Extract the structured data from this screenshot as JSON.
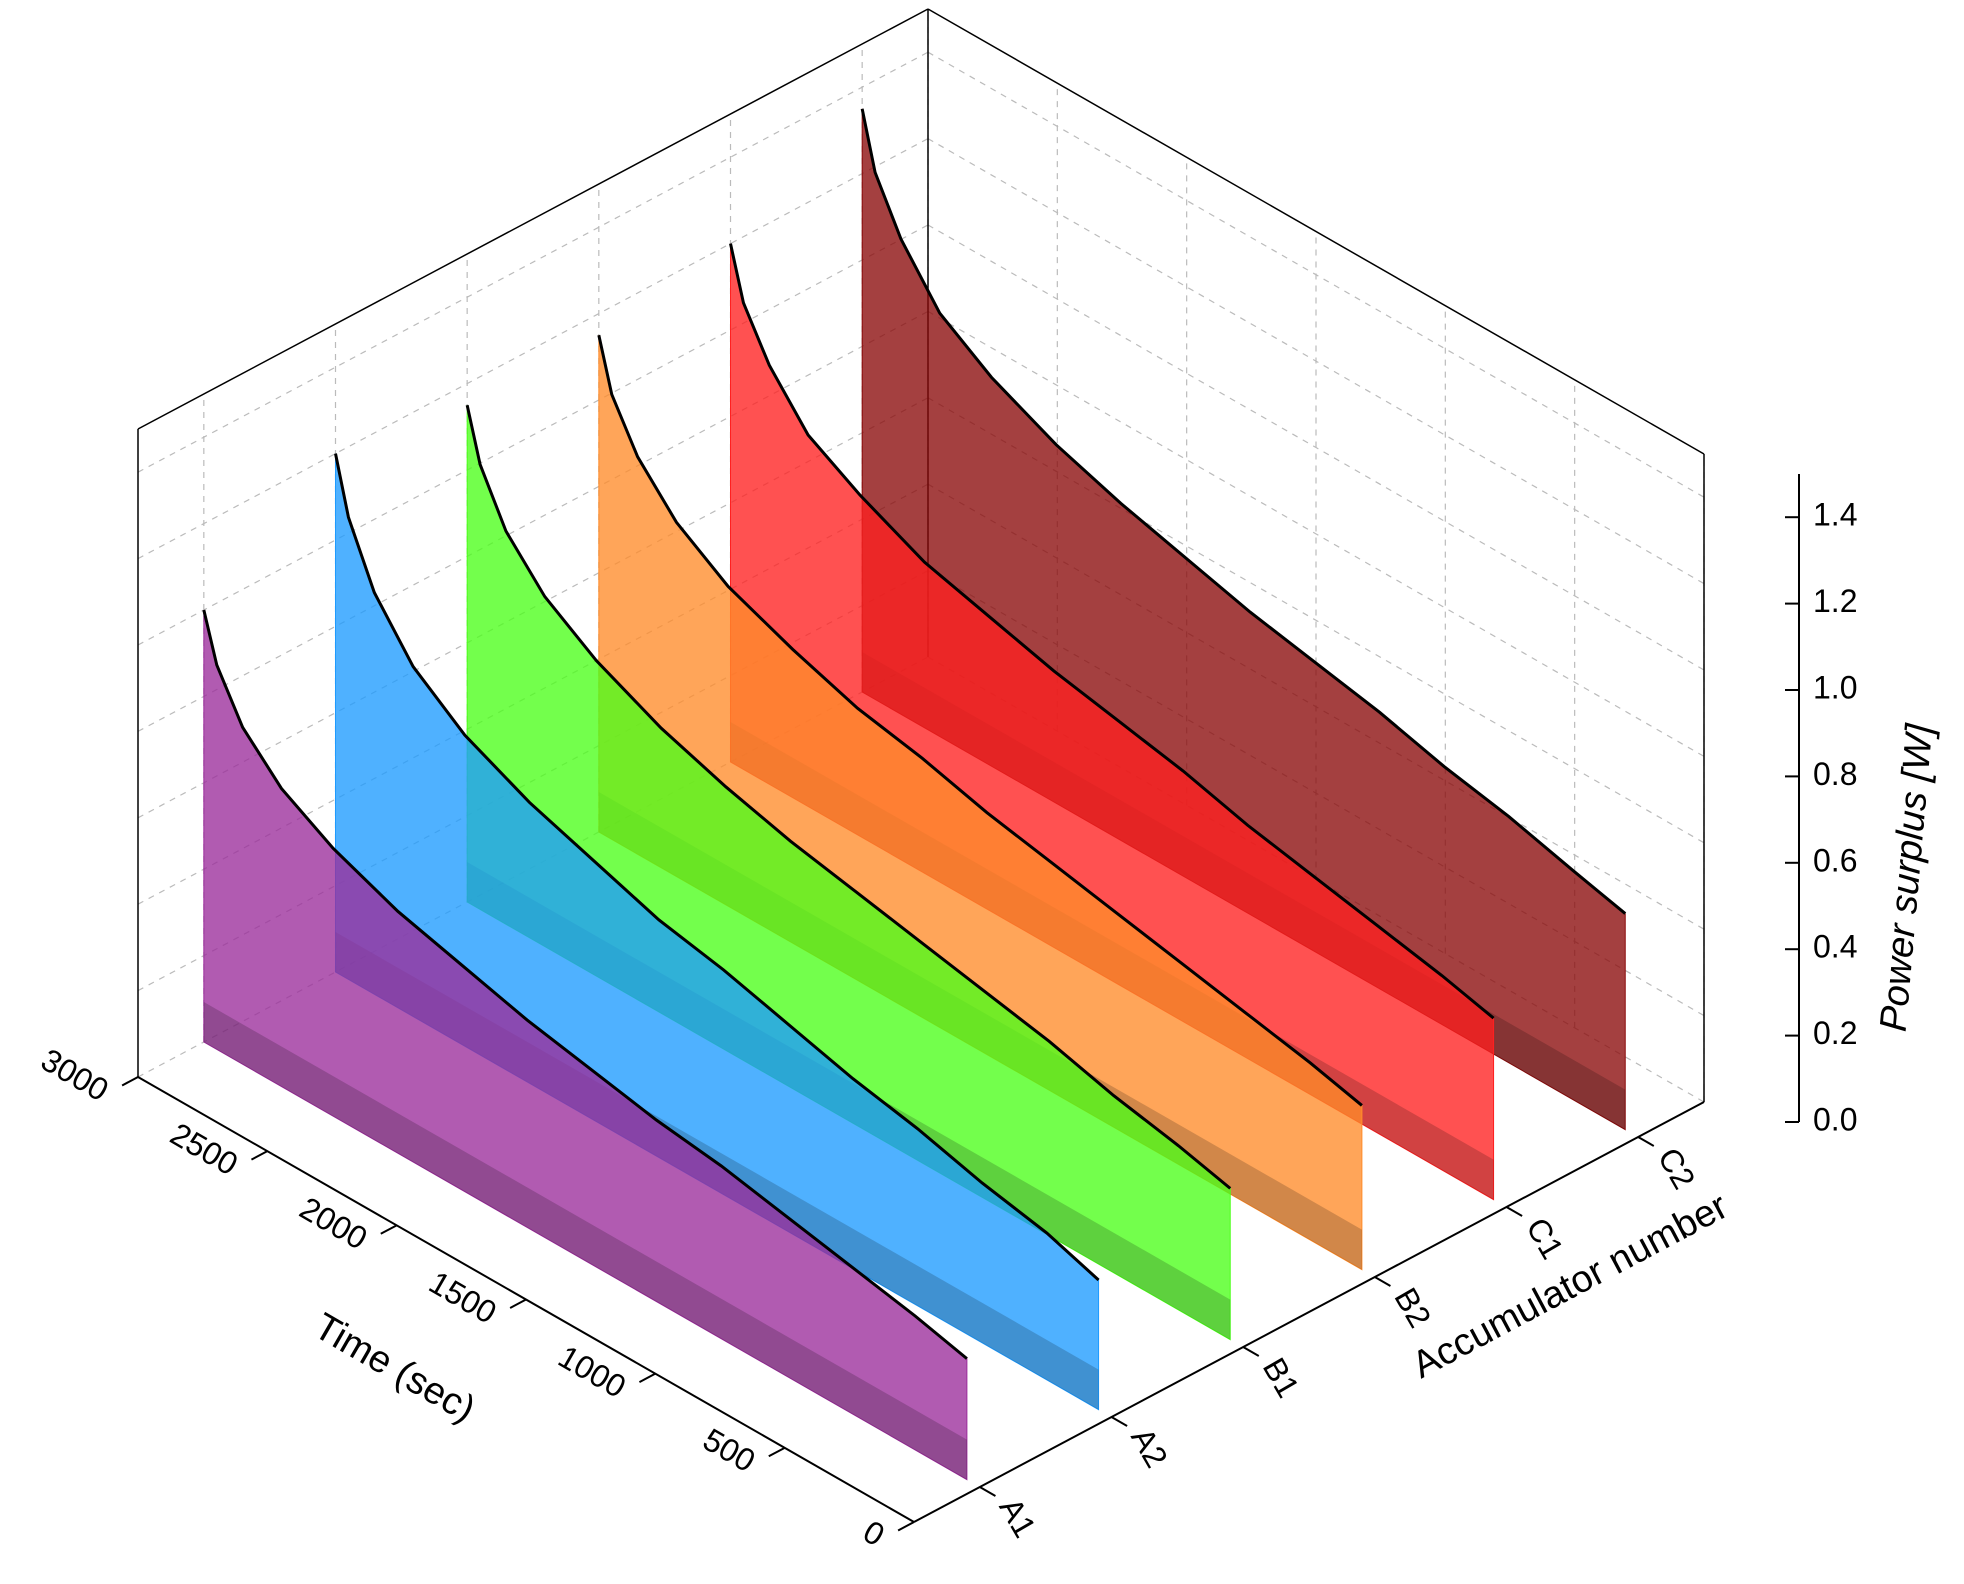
{
  "chart_data": {
    "type": "waterfall3d",
    "x": [
      3000,
      2950,
      2850,
      2700,
      2500,
      2250,
      2000,
      1750,
      1500,
      1250,
      1000,
      750,
      500,
      250,
      50
    ],
    "series": [
      {
        "name": "A1",
        "color": "#9b2d9b",
        "values": [
          1.0,
          0.89,
          0.78,
          0.69,
          0.62,
          0.56,
          0.52,
          0.48,
          0.45,
          0.42,
          0.4,
          0.37,
          0.34,
          0.31,
          0.28
        ]
      },
      {
        "name": "A2",
        "color": "#1e9bff",
        "values": [
          1.2,
          1.07,
          0.93,
          0.81,
          0.72,
          0.65,
          0.6,
          0.55,
          0.52,
          0.48,
          0.44,
          0.41,
          0.37,
          0.34,
          0.3
        ]
      },
      {
        "name": "B1",
        "color": "#4cff1a",
        "values": [
          1.15,
          1.03,
          0.91,
          0.81,
          0.73,
          0.66,
          0.61,
          0.57,
          0.54,
          0.51,
          0.48,
          0.45,
          0.41,
          0.38,
          0.35
        ]
      },
      {
        "name": "B2",
        "color": "#ff8c2a",
        "values": [
          1.15,
          1.03,
          0.92,
          0.82,
          0.74,
          0.68,
          0.63,
          0.6,
          0.56,
          0.53,
          0.5,
          0.47,
          0.44,
          0.41,
          0.38
        ]
      },
      {
        "name": "C1",
        "color": "#ff2020",
        "values": [
          1.2,
          1.08,
          0.97,
          0.86,
          0.79,
          0.72,
          0.68,
          0.64,
          0.61,
          0.58,
          0.54,
          0.51,
          0.48,
          0.45,
          0.42
        ]
      },
      {
        "name": "C2",
        "color": "#8b0a0a",
        "values": [
          1.35,
          1.22,
          1.1,
          0.98,
          0.9,
          0.83,
          0.78,
          0.74,
          0.7,
          0.67,
          0.64,
          0.6,
          0.57,
          0.53,
          0.5
        ]
      }
    ],
    "xlabel": "Time (sec)",
    "categories_label": "Accumulator number",
    "zlabel": "Power surplus [W]",
    "xlim": [
      0,
      3000
    ],
    "xticks": [
      0,
      500,
      1000,
      1500,
      2000,
      2500,
      3000
    ],
    "zlim": [
      0,
      1.5
    ],
    "zticks": [
      {
        "value": 0,
        "label": "0.0"
      },
      {
        "value": 0.2,
        "label": "0.2"
      },
      {
        "value": 0.4,
        "label": "0.4"
      },
      {
        "value": 0.6,
        "label": "0.6"
      },
      {
        "value": 0.8,
        "label": "0.8"
      },
      {
        "value": 1.0,
        "label": "1.0"
      },
      {
        "value": 1.2,
        "label": "1.2"
      },
      {
        "value": 1.4,
        "label": "1.4"
      }
    ],
    "grid": true
  }
}
